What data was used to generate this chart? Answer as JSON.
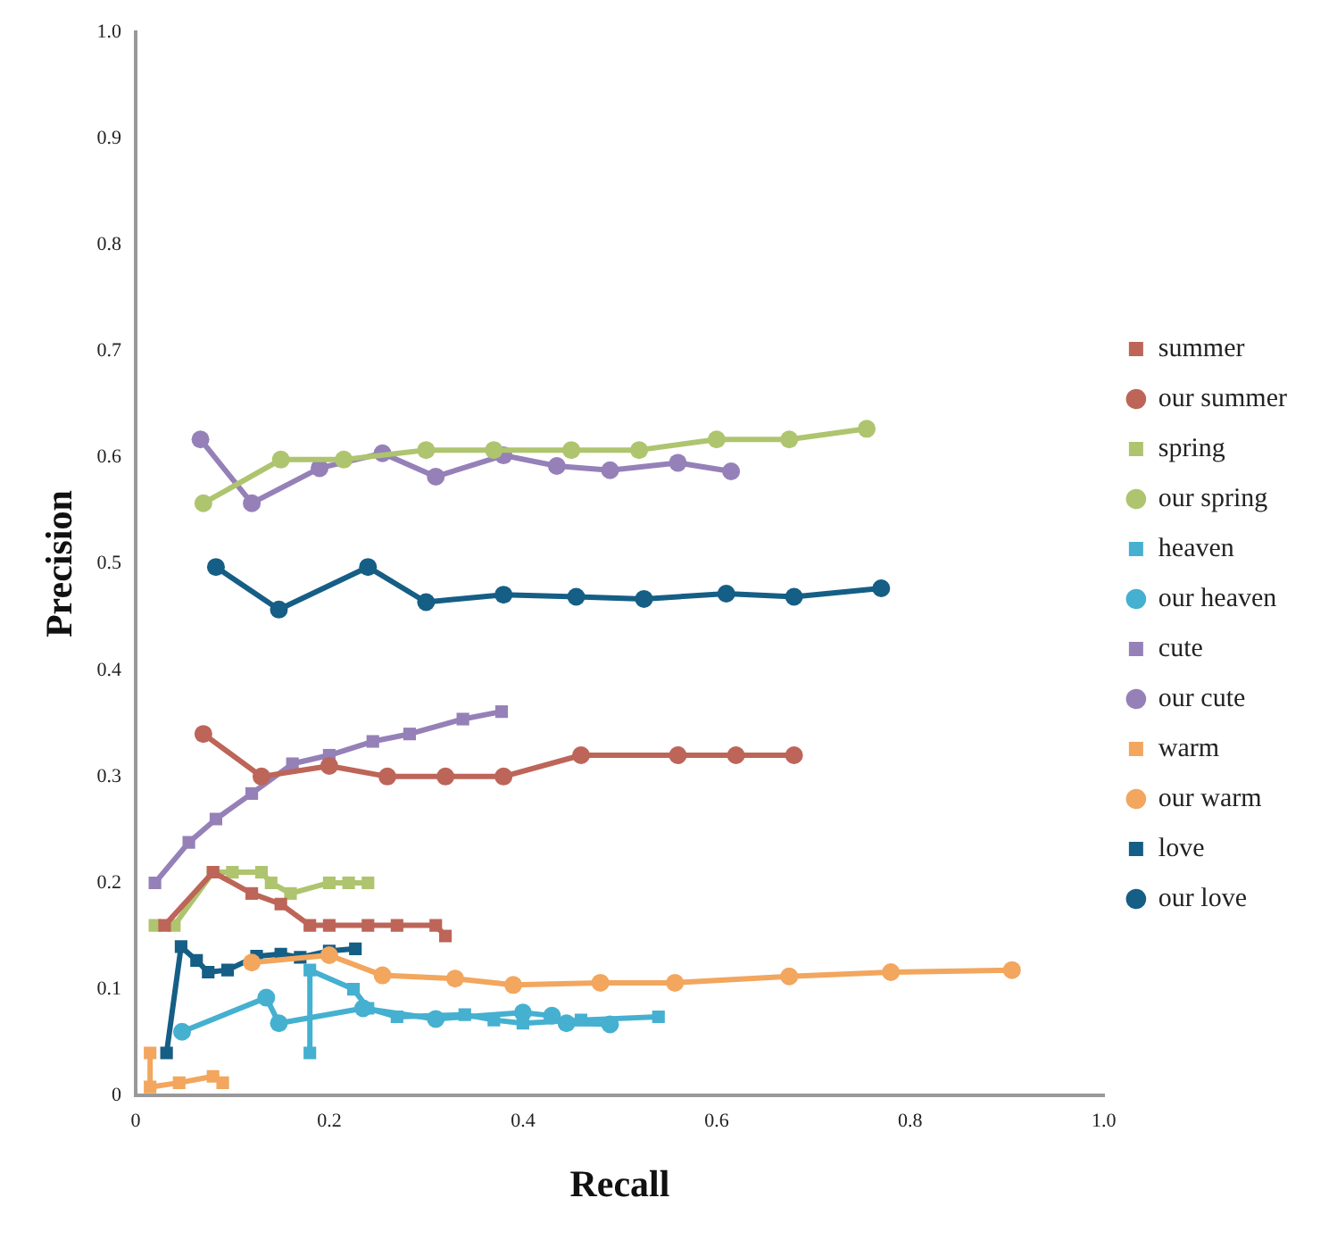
{
  "chart_data": {
    "type": "line",
    "xlabel": "Recall",
    "ylabel": "Precision",
    "xlim": [
      0,
      1
    ],
    "ylim": [
      0,
      1
    ],
    "xticks": [
      0,
      0.2,
      0.4,
      0.6,
      0.8,
      {
        "value": 1,
        "label": "1.0"
      }
    ],
    "yticks": [
      0,
      0.1,
      0.2,
      0.3,
      0.4,
      0.5,
      0.6,
      0.7,
      0.8,
      0.9,
      {
        "value": 1,
        "label": "1.0"
      }
    ],
    "grid": false,
    "legend": "right",
    "line_style": "solid",
    "series": [
      {
        "name": "summer",
        "color": "#bd6558",
        "marker": "square",
        "x": [
          0.03,
          0.08,
          0.12,
          0.15,
          0.18,
          0.2,
          0.24,
          0.27,
          0.31,
          0.32
        ],
        "values": [
          0.16,
          0.21,
          0.19,
          0.18,
          0.16,
          0.16,
          0.16,
          0.16,
          0.16,
          0.15
        ]
      },
      {
        "name": "our summer",
        "color": "#bd6558",
        "marker": "circle",
        "x": [
          0.07,
          0.13,
          0.2,
          0.26,
          0.32,
          0.38,
          0.46,
          0.56,
          0.62,
          0.68
        ],
        "values": [
          0.34,
          0.3,
          0.31,
          0.3,
          0.3,
          0.3,
          0.32,
          0.32,
          0.32,
          0.32
        ]
      },
      {
        "name": "spring",
        "color": "#aec46e",
        "marker": "square",
        "x": [
          0.02,
          0.04,
          0.08,
          0.1,
          0.13,
          0.14,
          0.16,
          0.2,
          0.22,
          0.24
        ],
        "values": [
          0.16,
          0.16,
          0.21,
          0.21,
          0.21,
          0.2,
          0.19,
          0.2,
          0.2,
          0.2
        ]
      },
      {
        "name": "our spring",
        "color": "#aec46e",
        "marker": "circle",
        "x": [
          0.07,
          0.15,
          0.215,
          0.3,
          0.37,
          0.45,
          0.52,
          0.6,
          0.675,
          0.755
        ],
        "values": [
          0.557,
          0.598,
          0.598,
          0.607,
          0.607,
          0.607,
          0.607,
          0.617,
          0.617,
          0.627
        ]
      },
      {
        "name": "heaven",
        "color": "#45b0d0",
        "marker": "square",
        "x": [
          0.18,
          0.18,
          0.225,
          0.24,
          0.27,
          0.34,
          0.37,
          0.4,
          0.46,
          0.54
        ],
        "values": [
          0.04,
          0.118,
          0.1,
          0.082,
          0.074,
          0.076,
          0.071,
          0.068,
          0.071,
          0.074
        ]
      },
      {
        "name": "our heaven",
        "color": "#45b0d0",
        "marker": "circle",
        "x": [
          0.048,
          0.135,
          0.148,
          0.235,
          0.31,
          0.4,
          0.43,
          0.445,
          0.49
        ],
        "values": [
          0.06,
          0.092,
          0.068,
          0.082,
          0.072,
          0.078,
          0.075,
          0.068,
          0.067
        ]
      },
      {
        "name": "cute",
        "color": "#9580b8",
        "marker": "square",
        "x": [
          0.02,
          0.055,
          0.083,
          0.12,
          0.162,
          0.2,
          0.245,
          0.283,
          0.338,
          0.378
        ],
        "values": [
          0.2,
          0.238,
          0.26,
          0.284,
          0.312,
          0.32,
          0.333,
          0.34,
          0.354,
          0.361
        ]
      },
      {
        "name": "our cute",
        "color": "#9580b8",
        "marker": "circle",
        "x": [
          0.067,
          0.12,
          0.19,
          0.255,
          0.31,
          0.38,
          0.435,
          0.49,
          0.56,
          0.615
        ],
        "values": [
          0.617,
          0.557,
          0.59,
          0.604,
          0.582,
          0.602,
          0.592,
          0.588,
          0.595,
          0.587
        ]
      },
      {
        "name": "warm",
        "color": "#f2a65e",
        "marker": "square",
        "x": [
          0.015,
          0.015,
          0.045,
          0.08,
          0.09
        ],
        "values": [
          0.04,
          0.008,
          0.012,
          0.018,
          0.012
        ]
      },
      {
        "name": "our warm",
        "color": "#f2a65e",
        "marker": "circle",
        "x": [
          0.12,
          0.2,
          0.255,
          0.33,
          0.39,
          0.48,
          0.557,
          0.675,
          0.78,
          0.905
        ],
        "values": [
          0.125,
          0.132,
          0.113,
          0.11,
          0.104,
          0.106,
          0.106,
          0.112,
          0.116,
          0.118
        ]
      },
      {
        "name": "love",
        "color": "#155e85",
        "marker": "square",
        "x": [
          0.032,
          0.047,
          0.063,
          0.075,
          0.095,
          0.125,
          0.15,
          0.17,
          0.2,
          0.227
        ],
        "values": [
          0.04,
          0.14,
          0.127,
          0.116,
          0.118,
          0.131,
          0.133,
          0.13,
          0.136,
          0.138
        ]
      },
      {
        "name": "our love",
        "color": "#155e85",
        "marker": "circle",
        "x": [
          0.083,
          0.148,
          0.24,
          0.3,
          0.38,
          0.455,
          0.525,
          0.61,
          0.68,
          0.77
        ],
        "values": [
          0.497,
          0.457,
          0.497,
          0.464,
          0.471,
          0.469,
          0.467,
          0.472,
          0.469,
          0.477
        ]
      }
    ]
  }
}
